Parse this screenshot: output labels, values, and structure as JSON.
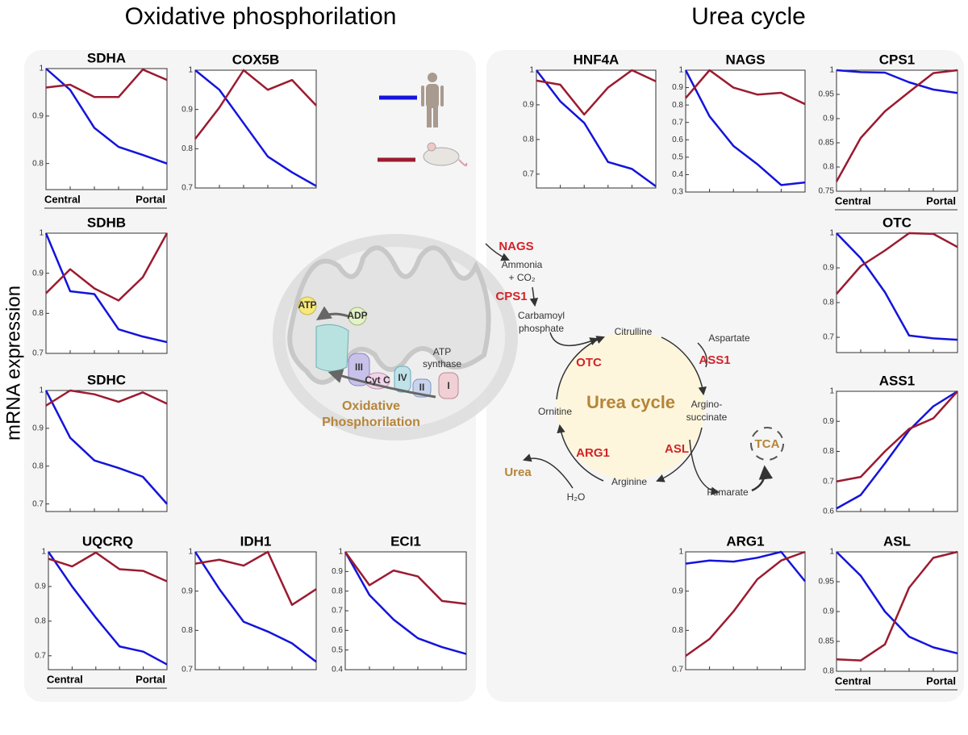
{
  "headings": {
    "left": "Oxidative phosphorilation",
    "right": "Urea cycle"
  },
  "y_axis_label": "mRNA expression",
  "zonation": {
    "central": "Central",
    "portal": "Portal"
  },
  "diagram": {
    "nags": "NAGS",
    "ammonia": "Ammonia",
    "co2": "+ CO₂",
    "cps1": "CPS1",
    "carbamoyl": "Carbamoyl",
    "phosphate": "phosphate",
    "citrulline": "Citrulline",
    "aspartate": "Aspartate",
    "ass1": "ASS1",
    "otc": "OTC",
    "urea_cycle": "Urea cycle",
    "arginino": "Argino-",
    "succinate": "succinate",
    "ornitine": "Ornitine",
    "asl": "ASL",
    "arg1": "ARG1",
    "urea": "Urea",
    "arginine": "Arginine",
    "fumarate": "Fumarate",
    "h2o": "H₂O",
    "tca": "TCA",
    "atp": "ATP",
    "adp": "ADP",
    "complex3": "III",
    "cytc": "Cyt C",
    "complex4": "IV",
    "complex2": "II",
    "complex1": "I",
    "atp_synthase_1": "ATP",
    "atp_synthase_2": "synthase",
    "oxphos_1": "Oxidative",
    "oxphos_2": "Phosphorilation"
  },
  "chart_data": [
    {
      "type": "line",
      "title": "SDHA",
      "x": [
        1,
        2,
        3,
        4,
        5,
        6
      ],
      "xlim": [
        1,
        6
      ],
      "ylim": [
        0.745,
        1.0
      ],
      "yticks": [
        0.8,
        0.9,
        1
      ],
      "series": [
        {
          "color": "#1414dc",
          "values": [
            1.0,
            0.955,
            0.875,
            0.835,
            0.818,
            0.8
          ]
        },
        {
          "color": "#9b1b30",
          "values": [
            0.96,
            0.966,
            0.94,
            0.94,
            0.998,
            0.976
          ]
        }
      ]
    },
    {
      "type": "line",
      "title": "COX5B",
      "x": [
        1,
        2,
        3,
        4,
        5,
        6
      ],
      "xlim": [
        1,
        6
      ],
      "ylim": [
        0.7,
        1.0
      ],
      "yticks": [
        0.7,
        0.8,
        0.9,
        1
      ],
      "series": [
        {
          "color": "#1414dc",
          "values": [
            1.0,
            0.95,
            0.865,
            0.78,
            0.74,
            0.705
          ]
        },
        {
          "color": "#9b1b30",
          "values": [
            0.825,
            0.905,
            1.0,
            0.95,
            0.975,
            0.91
          ]
        }
      ]
    },
    {
      "type": "line",
      "title": "SDHB",
      "x": [
        1,
        2,
        3,
        4,
        5,
        6
      ],
      "xlim": [
        1,
        6
      ],
      "ylim": [
        0.7,
        1.0
      ],
      "yticks": [
        0.7,
        0.8,
        0.9,
        1
      ],
      "series": [
        {
          "color": "#1414dc",
          "values": [
            1.0,
            0.855,
            0.848,
            0.76,
            0.742,
            0.728
          ]
        },
        {
          "color": "#9b1b30",
          "values": [
            0.85,
            0.91,
            0.862,
            0.832,
            0.89,
            1.0
          ]
        }
      ]
    },
    {
      "type": "line",
      "title": "SDHC",
      "x": [
        1,
        2,
        3,
        4,
        5,
        6
      ],
      "xlim": [
        1,
        6
      ],
      "ylim": [
        0.68,
        1.0
      ],
      "yticks": [
        0.7,
        0.8,
        0.9,
        1
      ],
      "series": [
        {
          "color": "#1414dc",
          "values": [
            1.0,
            0.875,
            0.815,
            0.795,
            0.772,
            0.7
          ]
        },
        {
          "color": "#9b1b30",
          "values": [
            0.96,
            1.0,
            0.99,
            0.97,
            0.995,
            0.965
          ]
        }
      ]
    },
    {
      "type": "line",
      "title": "UQCRQ",
      "x": [
        1,
        2,
        3,
        4,
        5,
        6
      ],
      "xlim": [
        1,
        6
      ],
      "ylim": [
        0.66,
        1.0
      ],
      "yticks": [
        0.7,
        0.8,
        0.9,
        1
      ],
      "series": [
        {
          "color": "#1414dc",
          "values": [
            1.0,
            0.9,
            0.81,
            0.727,
            0.712,
            0.675
          ]
        },
        {
          "color": "#9b1b30",
          "values": [
            0.98,
            0.958,
            0.998,
            0.95,
            0.945,
            0.915
          ]
        }
      ]
    },
    {
      "type": "line",
      "title": "IDH1",
      "x": [
        1,
        2,
        3,
        4,
        5,
        6
      ],
      "xlim": [
        1,
        6
      ],
      "ylim": [
        0.7,
        1.0
      ],
      "yticks": [
        0.7,
        0.8,
        0.9,
        1
      ],
      "series": [
        {
          "color": "#1414dc",
          "values": [
            1.0,
            0.905,
            0.822,
            0.797,
            0.767,
            0.72
          ]
        },
        {
          "color": "#9b1b30",
          "values": [
            0.97,
            0.98,
            0.965,
            1.0,
            0.865,
            0.905
          ]
        }
      ]
    },
    {
      "type": "line",
      "title": "ECI1",
      "x": [
        1,
        2,
        3,
        4,
        5,
        6
      ],
      "xlim": [
        1,
        6
      ],
      "ylim": [
        0.4,
        1.0
      ],
      "yticks": [
        0.4,
        0.5,
        0.6,
        0.7,
        0.8,
        0.9,
        1
      ],
      "series": [
        {
          "color": "#1414dc",
          "values": [
            1.0,
            0.78,
            0.655,
            0.56,
            0.515,
            0.48
          ]
        },
        {
          "color": "#9b1b30",
          "values": [
            1.0,
            0.83,
            0.905,
            0.875,
            0.75,
            0.735
          ]
        }
      ]
    },
    {
      "type": "line",
      "title": "HNF4A",
      "x": [
        1,
        2,
        3,
        4,
        5,
        6
      ],
      "xlim": [
        1,
        6
      ],
      "ylim": [
        0.66,
        1.0
      ],
      "yticks": [
        0.7,
        0.8,
        0.9,
        1
      ],
      "series": [
        {
          "color": "#1414dc",
          "values": [
            1.0,
            0.91,
            0.848,
            0.735,
            0.715,
            0.665
          ]
        },
        {
          "color": "#9b1b30",
          "values": [
            0.97,
            0.958,
            0.872,
            0.95,
            1.0,
            0.968
          ]
        }
      ]
    },
    {
      "type": "line",
      "title": "NAGS",
      "x": [
        1,
        2,
        3,
        4,
        5,
        6
      ],
      "xlim": [
        1,
        6
      ],
      "ylim": [
        0.3,
        1.0
      ],
      "yticks": [
        0.3,
        0.4,
        0.5,
        0.6,
        0.7,
        0.8,
        0.9,
        1
      ],
      "series": [
        {
          "color": "#1414dc",
          "values": [
            1.0,
            0.735,
            0.565,
            0.46,
            0.34,
            0.355
          ]
        },
        {
          "color": "#9b1b30",
          "values": [
            0.84,
            1.0,
            0.9,
            0.86,
            0.87,
            0.805
          ]
        }
      ]
    },
    {
      "type": "line",
      "title": "CPS1",
      "x": [
        1,
        2,
        3,
        4,
        5,
        6
      ],
      "xlim": [
        1,
        6
      ],
      "ylim": [
        0.75,
        1.0
      ],
      "yticks": [
        0.75,
        0.8,
        0.85,
        0.9,
        0.95,
        1
      ],
      "series": [
        {
          "color": "#1414dc",
          "values": [
            1.0,
            0.996,
            0.995,
            0.975,
            0.96,
            0.953
          ]
        },
        {
          "color": "#9b1b30",
          "values": [
            0.77,
            0.86,
            0.915,
            0.955,
            0.994,
            1.0
          ]
        }
      ]
    },
    {
      "type": "line",
      "title": "OTC",
      "x": [
        1,
        2,
        3,
        4,
        5,
        6
      ],
      "xlim": [
        1,
        6
      ],
      "ylim": [
        0.656,
        1.0
      ],
      "yticks": [
        0.7,
        0.8,
        0.9,
        1
      ],
      "series": [
        {
          "color": "#1414dc",
          "values": [
            1.0,
            0.928,
            0.83,
            0.705,
            0.697,
            0.693
          ]
        },
        {
          "color": "#9b1b30",
          "values": [
            0.825,
            0.905,
            0.95,
            1.0,
            0.998,
            0.96
          ]
        }
      ]
    },
    {
      "type": "line",
      "title": "ASS1",
      "x": [
        1,
        2,
        3,
        4,
        5,
        6
      ],
      "xlim": [
        1,
        6
      ],
      "ylim": [
        0.6,
        1.0
      ],
      "yticks": [
        0.6,
        0.7,
        0.8,
        0.9,
        1
      ],
      "series": [
        {
          "color": "#1414dc",
          "values": [
            0.61,
            0.655,
            0.76,
            0.87,
            0.95,
            1.0
          ]
        },
        {
          "color": "#9b1b30",
          "values": [
            0.7,
            0.715,
            0.8,
            0.875,
            0.91,
            1.0
          ]
        }
      ]
    },
    {
      "type": "line",
      "title": "ARG1",
      "x": [
        1,
        2,
        3,
        4,
        5,
        6
      ],
      "xlim": [
        1,
        6
      ],
      "ylim": [
        0.7,
        1.0
      ],
      "yticks": [
        0.7,
        0.8,
        0.9,
        1
      ],
      "series": [
        {
          "color": "#1414dc",
          "values": [
            0.97,
            0.978,
            0.975,
            0.985,
            1.0,
            0.925
          ]
        },
        {
          "color": "#9b1b30",
          "values": [
            0.735,
            0.778,
            0.848,
            0.93,
            0.978,
            1.0
          ]
        }
      ]
    },
    {
      "type": "line",
      "title": "ASL",
      "x": [
        1,
        2,
        3,
        4,
        5,
        6
      ],
      "xlim": [
        1,
        6
      ],
      "ylim": [
        0.8,
        1.0
      ],
      "yticks": [
        0.8,
        0.85,
        0.9,
        0.95,
        1
      ],
      "series": [
        {
          "color": "#1414dc",
          "values": [
            1.0,
            0.96,
            0.9,
            0.858,
            0.84,
            0.83
          ]
        },
        {
          "color": "#9b1b30",
          "values": [
            0.82,
            0.818,
            0.845,
            0.94,
            0.99,
            1.0
          ]
        }
      ]
    }
  ]
}
